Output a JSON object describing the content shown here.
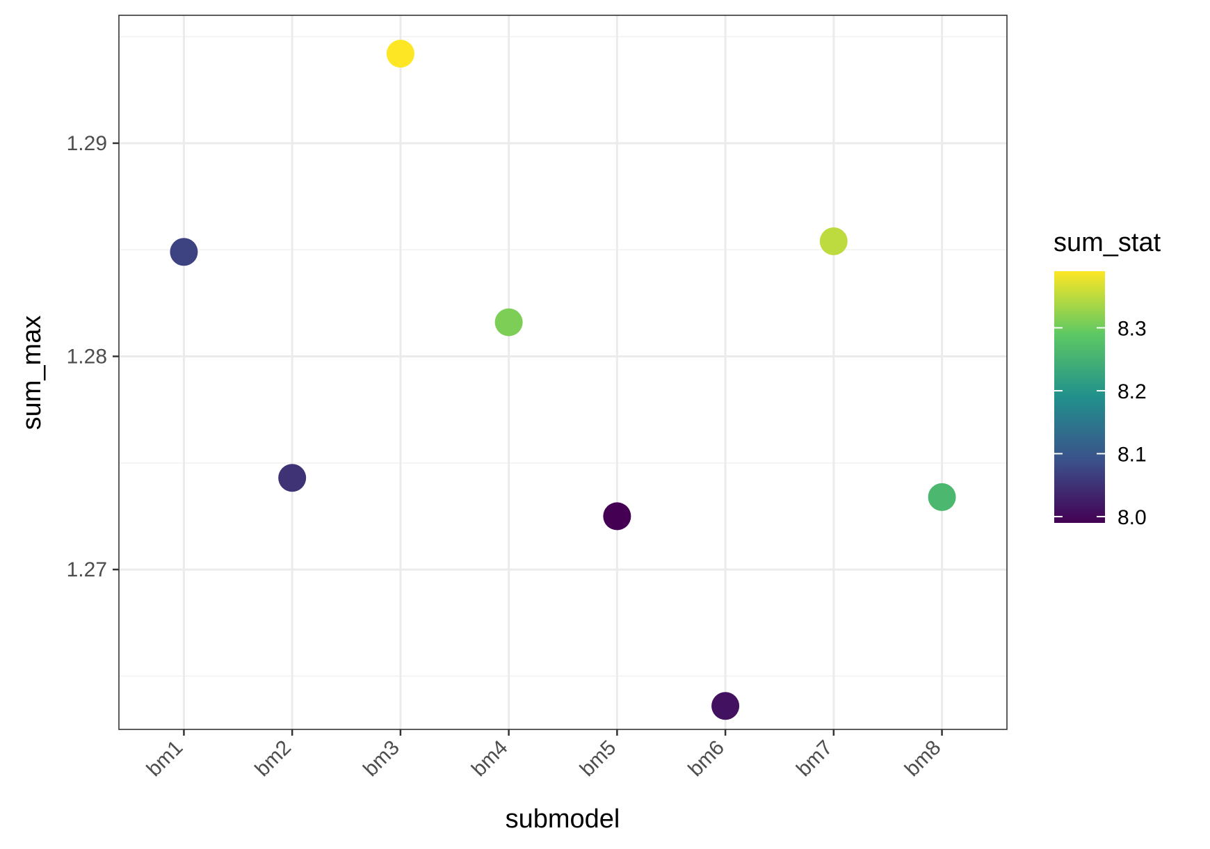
{
  "chart_data": {
    "type": "scatter",
    "xlabel": "submodel",
    "ylabel": "sum_max",
    "categories": [
      "bm1",
      "bm2",
      "bm3",
      "bm4",
      "bm5",
      "bm6",
      "bm7",
      "bm8"
    ],
    "values": [
      1.2849,
      1.2743,
      1.2942,
      1.2816,
      1.2725,
      1.2636,
      1.2854,
      1.2734
    ],
    "color_values": [
      8.07,
      8.05,
      8.39,
      8.31,
      7.99,
      8.01,
      8.35,
      8.26
    ],
    "ylim": [
      1.2625,
      1.296
    ],
    "yticks": [
      1.27,
      1.28,
      1.29
    ],
    "ytick_labels": [
      "1.27",
      "1.28",
      "1.29"
    ],
    "grid": true,
    "legend": {
      "title": "sum_stat",
      "position": "right",
      "range": [
        7.99,
        8.39
      ],
      "ticks": [
        8.0,
        8.1,
        8.2,
        8.3
      ],
      "tick_labels": [
        "8.0",
        "8.1",
        "8.2",
        "8.3"
      ]
    },
    "colors": {
      "panel_border": "#333333",
      "grid_major": "#ebebeb",
      "grid_minor": "#f2f2f2",
      "palette": [
        "#440154",
        "#3b528b",
        "#21908c",
        "#5dc863",
        "#fde725"
      ]
    }
  }
}
